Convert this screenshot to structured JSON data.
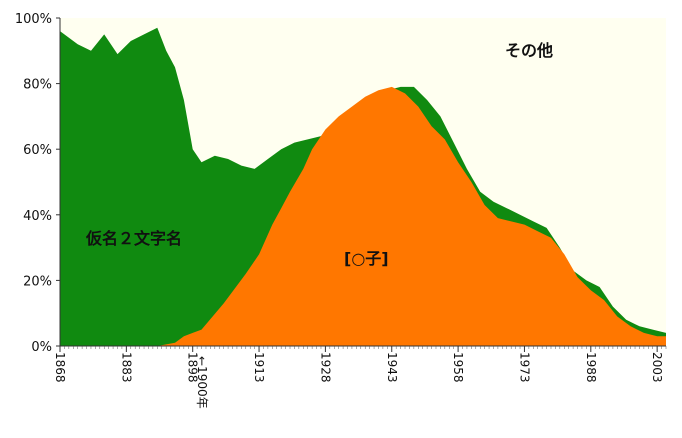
{
  "chart_data": {
    "type": "area",
    "stacked": true,
    "xlim": [
      1868,
      2005
    ],
    "ylim": [
      0,
      100
    ],
    "y_ticks": [
      0,
      20,
      40,
      60,
      80,
      100
    ],
    "y_tick_labels": [
      "0%",
      "20%",
      "40%",
      "60%",
      "80%",
      "100%"
    ],
    "x_ticks": [
      1868,
      1883,
      1898,
      1913,
      1928,
      1943,
      1958,
      1973,
      1988,
      2003
    ],
    "grid": false,
    "annotations": {
      "other": "その他",
      "kana2": "仮名２文字名",
      "ko": "[○子]",
      "year1900": "←1900年"
    },
    "colors": {
      "ko": "#FF7700",
      "kana2": "#108A10",
      "other": "#FFFFF0"
    },
    "series_ko": {
      "x": [
        1868,
        1880,
        1890,
        1894,
        1896,
        1898,
        1900,
        1905,
        1910,
        1913,
        1916,
        1918,
        1920,
        1923,
        1925,
        1928,
        1931,
        1934,
        1937,
        1940,
        1943,
        1946,
        1949,
        1952,
        1955,
        1958,
        1961,
        1964,
        1967,
        1970,
        1973,
        1976,
        1979,
        1982,
        1985,
        1988,
        1991,
        1994,
        1997,
        2000,
        2003,
        2005
      ],
      "y": [
        0,
        0,
        0,
        1,
        3,
        4,
        5,
        13,
        22,
        28,
        37,
        42,
        47,
        54,
        60,
        66,
        70,
        73,
        76,
        78,
        79,
        77,
        73,
        67,
        63,
        56,
        50,
        43,
        39,
        38,
        37,
        35,
        33,
        28,
        21,
        17,
        14,
        9,
        6,
        4,
        3,
        3
      ]
    },
    "series_kana2_top": {
      "x": [
        1868,
        1872,
        1875,
        1878,
        1881,
        1884,
        1887,
        1890,
        1892,
        1894,
        1896,
        1898,
        1900,
        1903,
        1906,
        1909,
        1912,
        1915,
        1918,
        1921,
        1924,
        1927,
        1930,
        1933,
        1936,
        1939,
        1942,
        1945,
        1948,
        1951,
        1954,
        1957,
        1960,
        1963,
        1966,
        1969,
        1972,
        1975,
        1978,
        1981,
        1984,
        1987,
        1990,
        1993,
        1996,
        1999,
        2002,
        2005
      ],
      "y": [
        96,
        92,
        90,
        95,
        89,
        93,
        95,
        97,
        90,
        85,
        75,
        60,
        56,
        58,
        57,
        55,
        54,
        57,
        60,
        62,
        63,
        64,
        66,
        70,
        73,
        76,
        78,
        79,
        79,
        75,
        70,
        62,
        54,
        47,
        44,
        42,
        40,
        38,
        36,
        30,
        23,
        20,
        18,
        12,
        8,
        6,
        5,
        4
      ]
    }
  }
}
